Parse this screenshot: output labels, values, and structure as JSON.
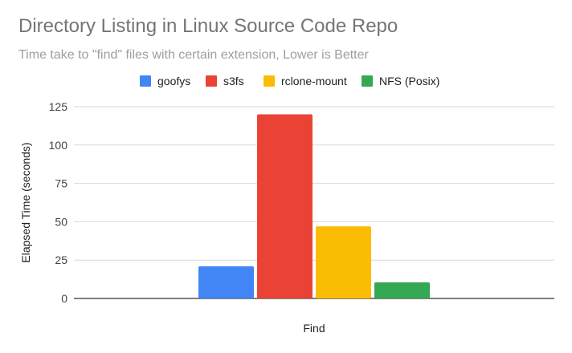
{
  "chart_data": {
    "type": "bar",
    "title": "Directory Listing in Linux Source Code Repo",
    "subtitle": "Time take to \"find\" files with certain extension, Lower is Better",
    "xlabel": "Find",
    "ylabel": "Elapsed Time (seconds)",
    "categories": [
      "Find"
    ],
    "series": [
      {
        "name": "goofys",
        "color": "#4285f4",
        "values": [
          21
        ]
      },
      {
        "name": "s3fs",
        "color": "#ea4335",
        "values": [
          120
        ]
      },
      {
        "name": "rclone-mount",
        "color": "#fbbc04",
        "values": [
          47
        ]
      },
      {
        "name": "NFS (Posix)",
        "color": "#34a853",
        "values": [
          10.5
        ]
      }
    ],
    "ylim": [
      0,
      125
    ],
    "yticks": [
      0,
      25,
      50,
      75,
      100,
      125
    ],
    "grid": true,
    "legend_position": "top"
  }
}
